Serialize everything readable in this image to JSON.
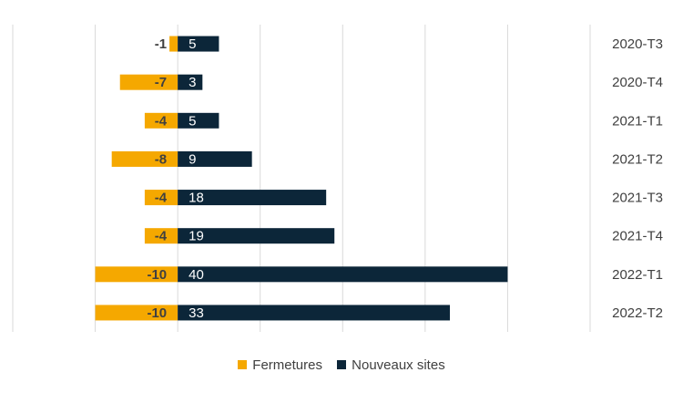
{
  "chart_data": {
    "type": "bar",
    "orientation": "horizontal",
    "stacked": true,
    "categories": [
      "2020-T3",
      "2020-T4",
      "2021-T1",
      "2021-T2",
      "2021-T3",
      "2021-T4",
      "2022-T1",
      "2022-T2"
    ],
    "series": [
      {
        "name": "Fermetures",
        "color": "#F5A800",
        "values": [
          -1,
          -7,
          -4,
          -8,
          -4,
          -4,
          -10,
          -10
        ]
      },
      {
        "name": "Nouveaux sites",
        "color": "#0C2639",
        "values": [
          5,
          3,
          5,
          9,
          18,
          19,
          40,
          33
        ]
      }
    ],
    "xlim": [
      -20,
      50
    ],
    "grid": true,
    "legend": "bottom",
    "category_labels_position": "right"
  }
}
